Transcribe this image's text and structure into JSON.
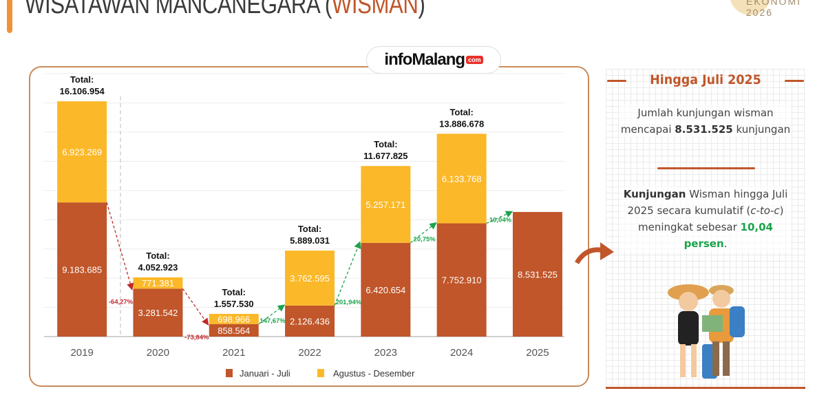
{
  "header": {
    "title_main": "WISATAWAN MANCANEGARA (",
    "title_highlight": "WISMAN",
    "title_end": ")",
    "brand_line1": "EKONOMI",
    "brand_line2": "2026"
  },
  "logo": {
    "text": "infoMalang",
    "suffix": "com"
  },
  "panel": {
    "title": "Hingga Juli 2025",
    "p1_a": "Jumlah kunjungan wisman mencapai ",
    "p1_b": "8.531.525",
    "p1_c": " kunjungan",
    "p2_a": "Kunjungan",
    "p2_b": " Wisman hingga Juli 2025 secara kumulatif (",
    "p2_c": "c-to-c",
    "p2_d": ") meningkat sebesar ",
    "p2_e": "10,04 persen",
    "p2_f": "."
  },
  "colors": {
    "jan_jul": "#c0562a",
    "agu_des": "#fbb829",
    "up": "#1aa34a",
    "down": "#c0282b"
  },
  "chart_data": {
    "type": "bar",
    "stacked": true,
    "categories": [
      "2019",
      "2020",
      "2021",
      "2022",
      "2023",
      "2024",
      "2025"
    ],
    "series": [
      {
        "name": "Januari - Juli",
        "values": [
          9183685,
          3281542,
          858564,
          2126436,
          6420654,
          7752910,
          8531525
        ],
        "labels": [
          "9.183.685",
          "3.281.542",
          "858.564",
          "2.126.436",
          "6.420.654",
          "7.752.910",
          "8.531.525"
        ]
      },
      {
        "name": "Agustus - Desember",
        "values": [
          6923269,
          771381,
          698966,
          3762595,
          5257171,
          6133768,
          null
        ],
        "labels": [
          "6.923.269",
          "771.381",
          "698.966",
          "3.762.595",
          "5.257.171",
          "6.133.768",
          ""
        ]
      }
    ],
    "total_label": "Total:",
    "totals": [
      "16.106.954",
      "4.052.923",
      "1.557.530",
      "5.889.031",
      "11.677.825",
      "13.886.678",
      ""
    ],
    "growth": [
      "-64,27%",
      "-73,84%",
      "147,67%",
      "201,94%",
      "20,75%",
      "10,04%"
    ],
    "ylim": [
      0,
      18000000
    ],
    "grid": true,
    "legend": "bottom"
  }
}
